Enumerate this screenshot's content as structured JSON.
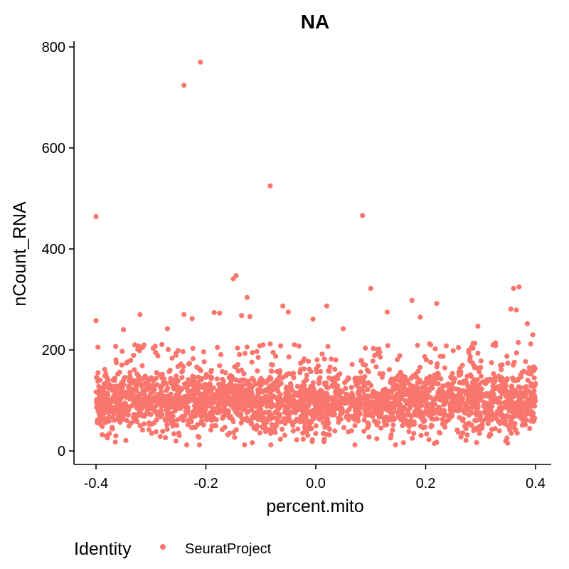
{
  "chart_data": {
    "type": "scatter",
    "title": "NA",
    "xlabel": "percent.mito",
    "ylabel": "nCount_RNA",
    "xlim": [
      -0.43,
      0.43
    ],
    "ylim": [
      -25,
      810
    ],
    "x_ticks": [
      -0.4,
      -0.2,
      0.0,
      0.2,
      0.4
    ],
    "x_tick_labels": [
      "-0.4",
      "-0.2",
      "0.0",
      "0.2",
      "0.4"
    ],
    "y_ticks": [
      0,
      200,
      400,
      600,
      800
    ],
    "y_tick_labels": [
      "0",
      "200",
      "400",
      "600",
      "800"
    ],
    "grid": false,
    "legend": {
      "placement": "bottom-left",
      "title": "Identity",
      "entries": [
        "SeuratProject"
      ]
    },
    "series": [
      {
        "name": "SeuratProject",
        "color": "#F8766D",
        "outliers": [
          [
            -0.4,
            464
          ],
          [
            -0.24,
            724
          ],
          [
            -0.21,
            770
          ],
          [
            -0.083,
            525
          ],
          [
            0.085,
            466
          ],
          [
            -0.145,
            347
          ],
          [
            -0.15,
            341
          ],
          [
            0.1,
            322
          ],
          [
            0.37,
            325
          ],
          [
            0.36,
            322
          ],
          [
            -0.125,
            304
          ],
          [
            -0.4,
            258
          ],
          [
            -0.35,
            240
          ],
          [
            -0.32,
            270
          ],
          [
            -0.27,
            242
          ],
          [
            -0.24,
            270
          ],
          [
            -0.225,
            262
          ],
          [
            -0.185,
            274
          ],
          [
            -0.175,
            273
          ],
          [
            -0.135,
            268
          ],
          [
            -0.12,
            266
          ],
          [
            -0.06,
            287
          ],
          [
            -0.05,
            275
          ],
          [
            -0.005,
            261
          ],
          [
            0.02,
            287
          ],
          [
            0.05,
            242
          ],
          [
            0.13,
            275
          ],
          [
            0.175,
            298
          ],
          [
            0.19,
            265
          ],
          [
            0.22,
            292
          ],
          [
            0.295,
            247
          ],
          [
            0.355,
            281
          ],
          [
            0.365,
            279
          ],
          [
            0.385,
            252
          ],
          [
            0.395,
            230
          ]
        ],
        "bulk": {
          "count": 2700,
          "x_range": [
            -0.4,
            0.4
          ],
          "y_range": [
            12,
            215
          ],
          "y_center": 95,
          "y_spread": 30
        }
      }
    ]
  }
}
